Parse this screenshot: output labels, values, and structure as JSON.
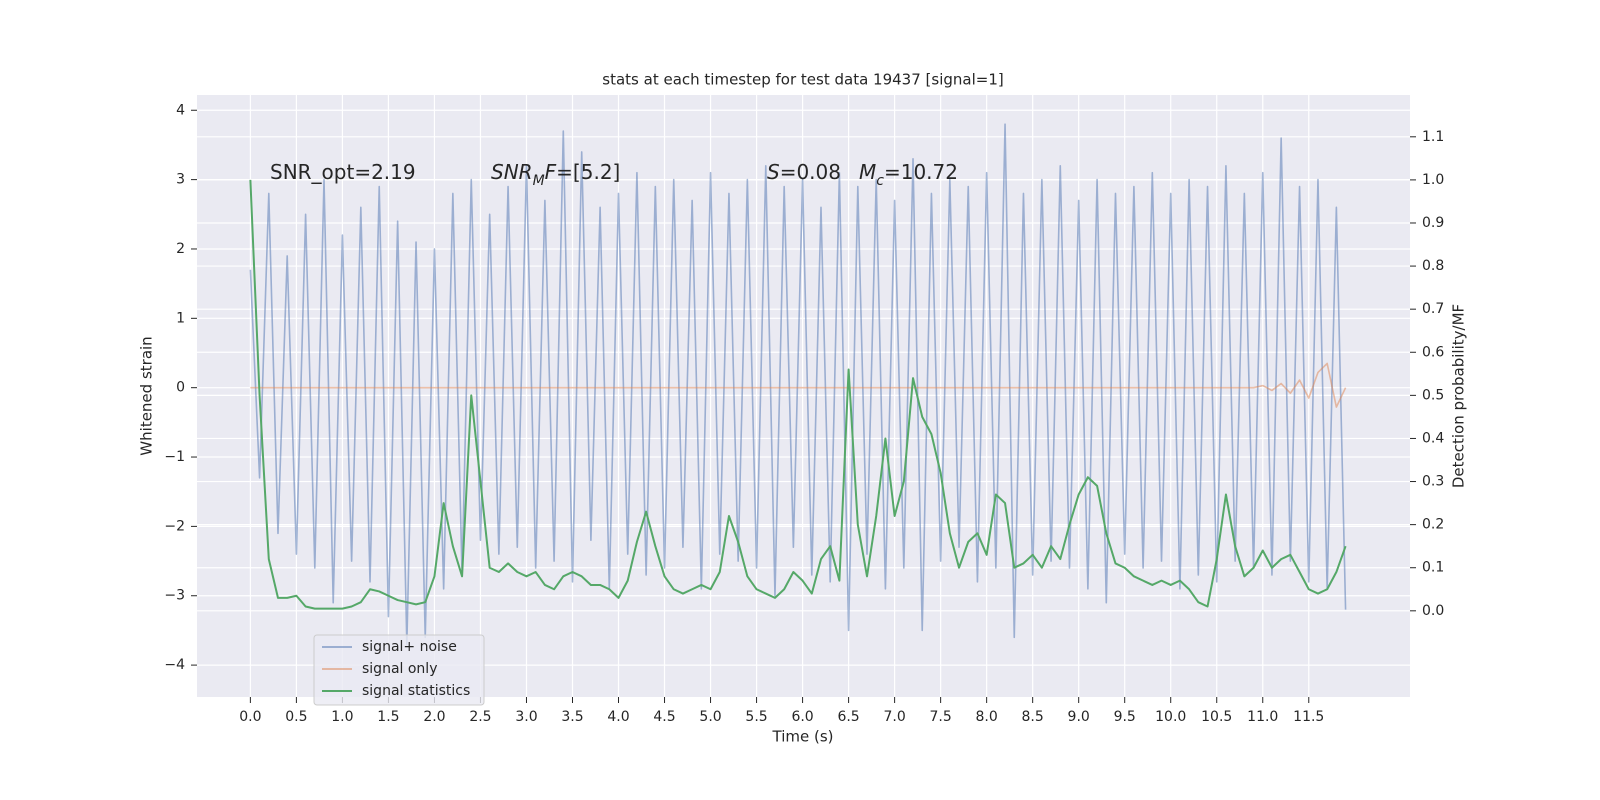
{
  "chart_data": {
    "type": "line",
    "title": "stats at each timestep for test data 19437 [signal=1]",
    "xlabel": "Time (s)",
    "ylabel": "Whitened strain",
    "y2label": "Detection probability/MF",
    "xlim": [
      -0.58,
      12.6
    ],
    "ylim": [
      -4.46,
      4.22
    ],
    "y2lim": [
      -0.2,
      1.197
    ],
    "xticks": [
      {
        "value": 0,
        "label": "0.0"
      },
      0.5,
      {
        "value": 1,
        "label": "1.0"
      },
      1.5,
      {
        "value": 2,
        "label": "2.0"
      },
      2.5,
      {
        "value": 3,
        "label": "3.0"
      },
      3.5,
      {
        "value": 4,
        "label": "4.0"
      },
      4.5,
      {
        "value": 5,
        "label": "5.0"
      },
      5.5,
      {
        "value": 6,
        "label": "6.0"
      },
      6.5,
      {
        "value": 7,
        "label": "7.0"
      },
      7.5,
      {
        "value": 8,
        "label": "8.0"
      },
      8.5,
      {
        "value": 9,
        "label": "9.0"
      },
      9.5,
      {
        "value": 10,
        "label": "10.0"
      },
      10.5,
      {
        "value": 11,
        "label": "11.0"
      },
      11.5
    ],
    "yticks": [
      {
        "value": -4,
        "label": "−4"
      },
      {
        "value": -3,
        "label": "−3"
      },
      {
        "value": -2,
        "label": "−2"
      },
      {
        "value": -1,
        "label": "−1"
      },
      0,
      1,
      2,
      3,
      4
    ],
    "y2ticks": [
      {
        "value": 0,
        "label": "0.0"
      },
      0.1,
      0.2,
      0.3,
      0.4,
      0.5,
      0.6,
      0.7,
      0.8,
      0.9,
      {
        "value": 1,
        "label": "1.0"
      },
      1.1
    ],
    "grid": true,
    "legend": "lower left",
    "annotations": [
      [
        {
          "text": "SNR_opt=2.19"
        }
      ],
      [
        {
          "text": "SNR",
          "italic": true
        },
        {
          "text": "M",
          "italic": true,
          "sub": true
        },
        {
          "text": "F",
          "italic": true
        },
        {
          "text": "=[5.2]"
        }
      ],
      [
        {
          "text": "S",
          "italic": true
        },
        {
          "text": "=0.08"
        }
      ],
      [
        {
          "text": "M",
          "italic": true
        },
        {
          "text": "c",
          "italic": true,
          "sub": true
        },
        {
          "text": "=10.72"
        }
      ]
    ],
    "x": [
      0.0,
      0.1,
      0.2,
      0.3,
      0.4,
      0.5,
      0.6,
      0.7,
      0.8,
      0.9,
      1.0,
      1.1,
      1.2,
      1.3,
      1.4,
      1.5,
      1.6,
      1.7,
      1.8,
      1.9,
      2.0,
      2.1,
      2.2,
      2.3,
      2.4,
      2.5,
      2.6,
      2.7,
      2.8,
      2.9,
      3.0,
      3.1,
      3.2,
      3.3,
      3.4,
      3.5,
      3.6,
      3.7,
      3.8,
      3.9,
      4.0,
      4.1,
      4.2,
      4.3,
      4.4,
      4.5,
      4.6,
      4.7,
      4.8,
      4.9,
      5.0,
      5.1,
      5.2,
      5.3,
      5.4,
      5.5,
      5.6,
      5.7,
      5.8,
      5.9,
      6.0,
      6.1,
      6.2,
      6.3,
      6.4,
      6.5,
      6.6,
      6.7,
      6.8,
      6.9,
      7.0,
      7.1,
      7.2,
      7.3,
      7.4,
      7.5,
      7.6,
      7.7,
      7.8,
      7.9,
      8.0,
      8.1,
      8.2,
      8.3,
      8.4,
      8.5,
      8.6,
      8.7,
      8.8,
      8.9,
      9.0,
      9.1,
      9.2,
      9.3,
      9.4,
      9.5,
      9.6,
      9.7,
      9.8,
      9.9,
      10.0,
      10.1,
      10.2,
      10.3,
      10.4,
      10.5,
      10.6,
      10.7,
      10.8,
      10.9,
      11.0,
      11.1,
      11.2,
      11.3,
      11.4,
      11.5,
      11.6,
      11.7,
      11.8,
      11.9
    ],
    "series": [
      {
        "name": "signal+ noise",
        "color": "#4c72b0",
        "values": [
          1.7,
          -1.3,
          2.8,
          -2.1,
          1.9,
          -2.4,
          2.5,
          -2.6,
          3.0,
          -3.1,
          2.2,
          -2.5,
          2.6,
          -2.8,
          2.9,
          -3.3,
          2.4,
          -3.7,
          2.1,
          -3.6,
          2.0,
          -2.9,
          2.8,
          -2.7,
          3.0,
          -2.2,
          2.5,
          -2.4,
          2.9,
          -2.3,
          3.2,
          -2.6,
          2.7,
          -2.5,
          3.7,
          -2.8,
          3.4,
          -2.2,
          2.6,
          -2.9,
          2.8,
          -2.4,
          3.1,
          -2.7,
          2.9,
          -2.6,
          3.0,
          -2.3,
          2.7,
          -2.9,
          3.1,
          -2.4,
          2.8,
          -2.5,
          3.0,
          -2.6,
          3.2,
          -3.0,
          2.9,
          -2.3,
          3.0,
          -2.7,
          2.6,
          -2.8,
          3.1,
          -3.5,
          2.9,
          -2.4,
          3.0,
          -2.9,
          2.7,
          -2.6,
          3.3,
          -3.5,
          2.8,
          -2.5,
          3.0,
          -2.3,
          2.9,
          -2.8,
          3.1,
          -2.6,
          3.8,
          -3.6,
          2.8,
          -2.7,
          3.0,
          -2.5,
          3.2,
          -2.6,
          2.7,
          -2.9,
          3.0,
          -3.1,
          2.8,
          -2.4,
          2.9,
          -2.6,
          3.1,
          -2.5,
          2.8,
          -2.9,
          3.0,
          -2.7,
          2.9,
          -2.8,
          3.2,
          -2.5,
          2.8,
          -2.6,
          3.1,
          -2.7,
          3.6,
          -2.5,
          2.9,
          -2.8,
          3.0,
          -2.9,
          2.6,
          -3.2
        ]
      },
      {
        "name": "signal only",
        "color": "#dd8452",
        "values": [
          0,
          0,
          0,
          0,
          0,
          0,
          0,
          0,
          0,
          0,
          0,
          0,
          0,
          0,
          0,
          0,
          0,
          0,
          0,
          0,
          0,
          0,
          0,
          0,
          0,
          0,
          0,
          0,
          0,
          0,
          0,
          0,
          0,
          0,
          0,
          0,
          0,
          0,
          0,
          0,
          0,
          0,
          0,
          0,
          0,
          0,
          0,
          0,
          0,
          0,
          0,
          0,
          0,
          0,
          0,
          0,
          0,
          0,
          0,
          0,
          0,
          0,
          0,
          0,
          0,
          0,
          0,
          0,
          0,
          0,
          0,
          0,
          0,
          0,
          0,
          0,
          0,
          0,
          0,
          0,
          0,
          0,
          0,
          0,
          0,
          0,
          0,
          0,
          0,
          0,
          0,
          0,
          0,
          0,
          0,
          0,
          0,
          0,
          0,
          0,
          0,
          0,
          0,
          0,
          0,
          0,
          0,
          0,
          0,
          0,
          0.03,
          -0.04,
          0.06,
          -0.08,
          0.11,
          -0.15,
          0.22,
          0.35,
          -0.28,
          0
        ]
      },
      {
        "name": "signal statistics",
        "color": "#55a868",
        "axis": "y2",
        "values": [
          1.0,
          0.5,
          0.12,
          0.03,
          0.03,
          0.035,
          0.01,
          0.005,
          0.005,
          0.005,
          0.005,
          0.01,
          0.02,
          0.05,
          0.045,
          0.035,
          0.025,
          0.02,
          0.015,
          0.02,
          0.08,
          0.25,
          0.15,
          0.08,
          0.5,
          0.3,
          0.1,
          0.09,
          0.11,
          0.09,
          0.08,
          0.09,
          0.06,
          0.05,
          0.08,
          0.09,
          0.08,
          0.06,
          0.06,
          0.05,
          0.03,
          0.07,
          0.16,
          0.23,
          0.15,
          0.08,
          0.05,
          0.04,
          0.05,
          0.06,
          0.05,
          0.09,
          0.22,
          0.16,
          0.08,
          0.05,
          0.04,
          0.03,
          0.05,
          0.09,
          0.07,
          0.04,
          0.12,
          0.15,
          0.07,
          0.56,
          0.2,
          0.08,
          0.22,
          0.4,
          0.22,
          0.3,
          0.54,
          0.45,
          0.41,
          0.32,
          0.18,
          0.1,
          0.16,
          0.18,
          0.13,
          0.27,
          0.25,
          0.1,
          0.11,
          0.13,
          0.1,
          0.15,
          0.12,
          0.2,
          0.27,
          0.31,
          0.29,
          0.18,
          0.11,
          0.1,
          0.08,
          0.07,
          0.06,
          0.07,
          0.06,
          0.07,
          0.05,
          0.02,
          0.01,
          0.12,
          0.27,
          0.15,
          0.08,
          0.1,
          0.14,
          0.1,
          0.12,
          0.13,
          0.09,
          0.05,
          0.04,
          0.05,
          0.09,
          0.15
        ]
      }
    ]
  }
}
